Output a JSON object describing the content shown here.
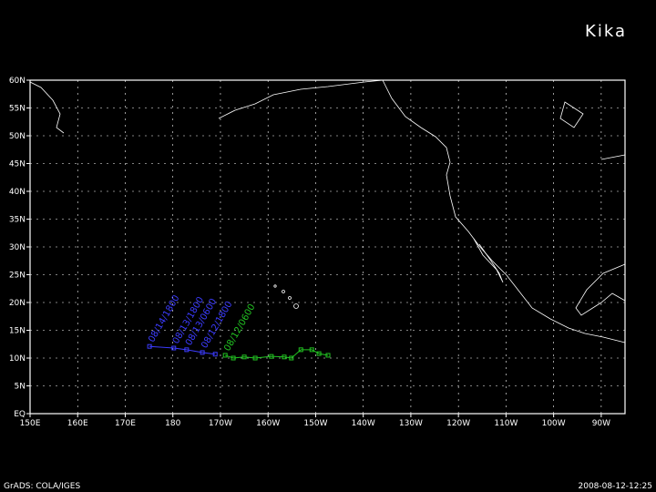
{
  "title": "Kika",
  "footer": {
    "left": "GrADS: COLA/IGES",
    "right": "2008-08-12-12:25"
  },
  "map": {
    "xlim": [
      150,
      275
    ],
    "ylim": [
      0,
      60
    ],
    "xticks": [
      {
        "value": 150,
        "label": "150E"
      },
      {
        "value": 160,
        "label": "160E"
      },
      {
        "value": 170,
        "label": "170E"
      },
      {
        "value": 180,
        "label": "180"
      },
      {
        "value": 190,
        "label": "170W"
      },
      {
        "value": 200,
        "label": "160W"
      },
      {
        "value": 210,
        "label": "150W"
      },
      {
        "value": 220,
        "label": "140W"
      },
      {
        "value": 230,
        "label": "130W"
      },
      {
        "value": 240,
        "label": "120W"
      },
      {
        "value": 250,
        "label": "110W"
      },
      {
        "value": 260,
        "label": "100W"
      },
      {
        "value": 270,
        "label": "90W"
      }
    ],
    "yticks": [
      {
        "value": 0,
        "label": "EQ"
      },
      {
        "value": 5,
        "label": "5N"
      },
      {
        "value": 10,
        "label": "10N"
      },
      {
        "value": 15,
        "label": "15N"
      },
      {
        "value": 20,
        "label": "20N"
      },
      {
        "value": 25,
        "label": "25N"
      },
      {
        "value": 30,
        "label": "30N"
      },
      {
        "value": 35,
        "label": "35N"
      },
      {
        "value": 40,
        "label": "40N"
      },
      {
        "value": 45,
        "label": "45N"
      },
      {
        "value": 50,
        "label": "50N"
      },
      {
        "value": 55,
        "label": "55N"
      },
      {
        "value": 60,
        "label": "60N"
      }
    ],
    "grid": true,
    "tracks": [
      {
        "color": "#3c3cff",
        "lon": [
          175.1,
          180.2,
          182.9,
          186.2,
          188.9
        ],
        "lat": [
          12.1,
          11.8,
          11.5,
          11.0,
          10.7
        ],
        "point_labels": [
          "08/14/1800",
          "08/13/1800",
          "08/13/0600",
          "08/12/1800",
          null
        ]
      },
      {
        "color": "#22c322",
        "lon": [
          191.0,
          192.7,
          195.0,
          197.3,
          200.7,
          203.4,
          204.9,
          206.9,
          209.2,
          210.7,
          212.6
        ],
        "lat": [
          10.5,
          10.0,
          10.2,
          10.0,
          10.3,
          10.2,
          10.0,
          11.5,
          11.5,
          10.8,
          10.5
        ],
        "point_labels": [
          "08/12/0600",
          null,
          null,
          null,
          null,
          null,
          null,
          null,
          null,
          null,
          null
        ]
      }
    ]
  }
}
